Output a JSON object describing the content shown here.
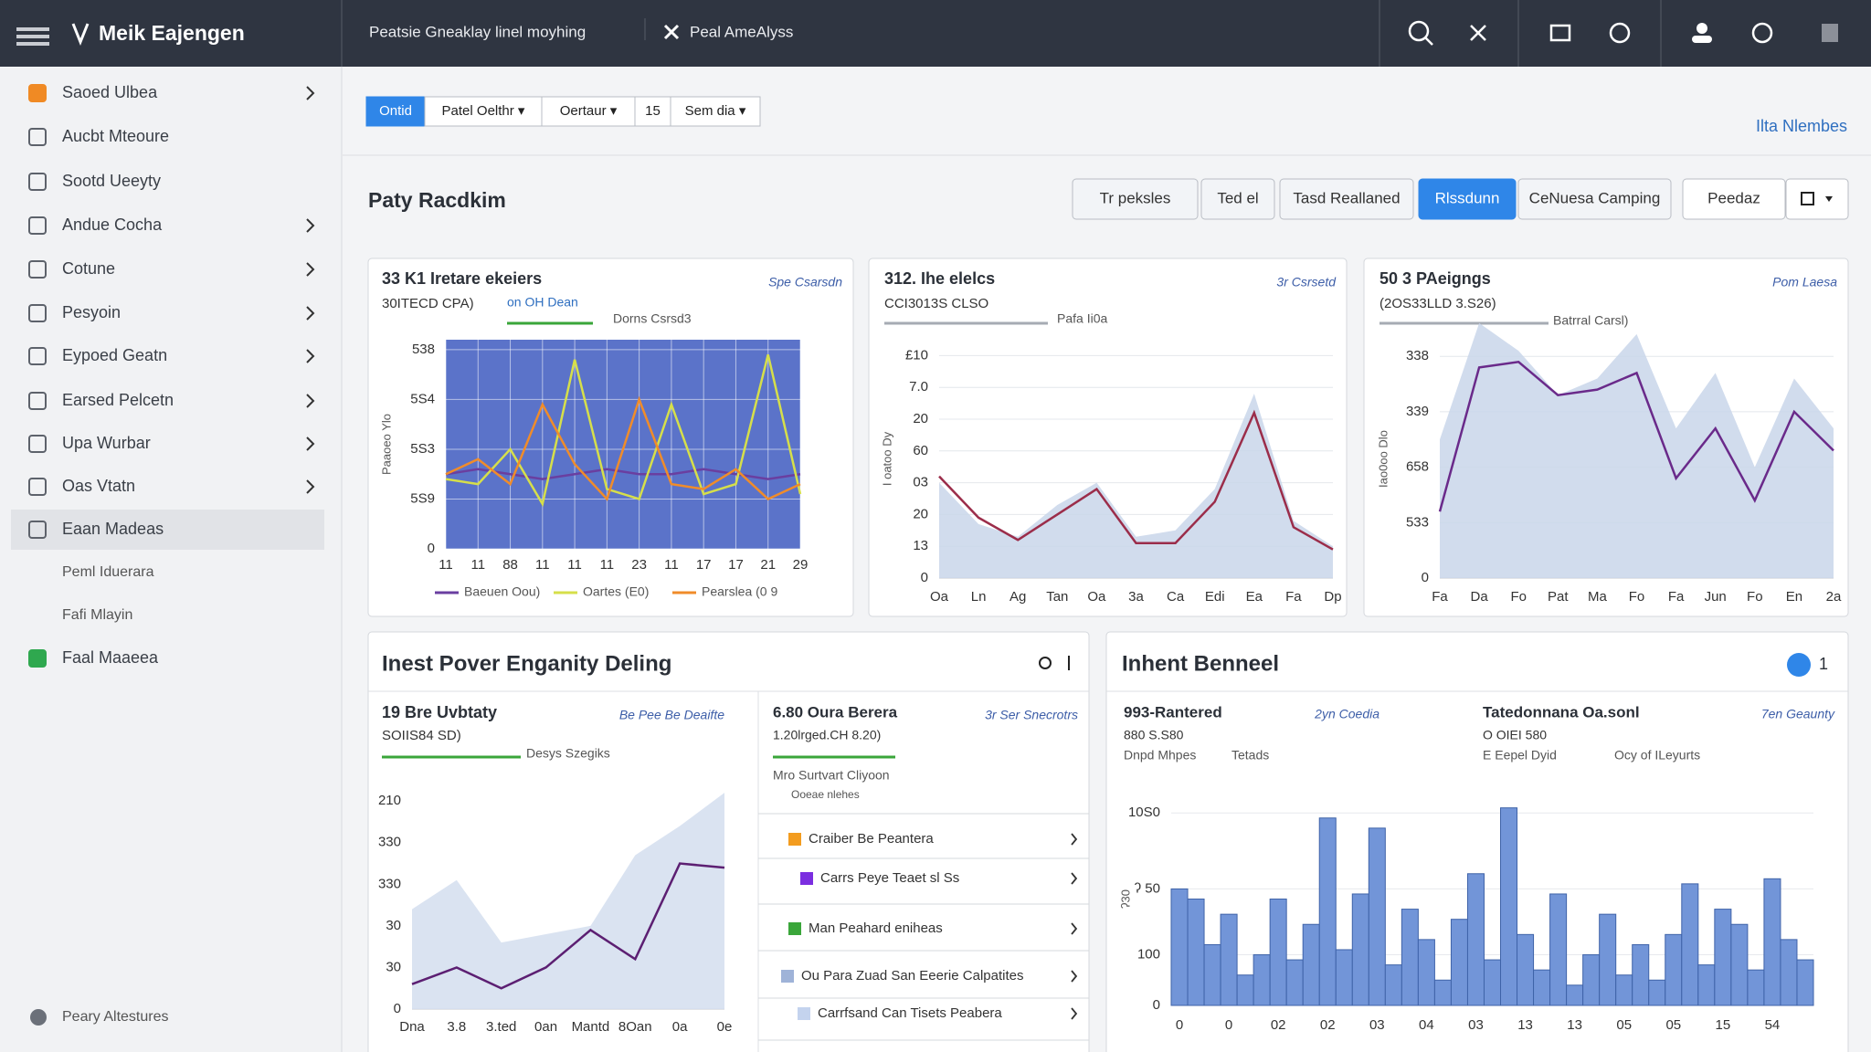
{
  "header": {
    "brand": "Meik Eajengen",
    "tabs": [
      "Peatsie Gneaklay linel moyhing",
      "Peal AmeAlyss"
    ]
  },
  "sidebar": {
    "items": [
      {
        "label": "Saoed Ulbea",
        "chevron": true
      },
      {
        "label": "Aucbt Mteoure"
      },
      {
        "label": "Sootd Ueeyty"
      },
      {
        "label": "Andue Cocha",
        "chevron": true
      },
      {
        "label": "Cotune",
        "chevron": true
      },
      {
        "label": "Pesyoin",
        "chevron": true
      },
      {
        "label": "Eypoed Geatn",
        "chevron": true
      },
      {
        "label": "Earsed Pelcetn",
        "chevron": true
      },
      {
        "label": "Upa Wurbar",
        "chevron": true
      },
      {
        "label": "Oas Vtatn",
        "chevron": true
      },
      {
        "label": "Eaan Madeas",
        "active": true
      },
      {
        "label": "Peml Iduerara",
        "indent": true
      },
      {
        "label": "Fafi Mlayin",
        "indent": true
      },
      {
        "label": "Faal Maaeea"
      }
    ],
    "footer": "Peary Altestures"
  },
  "toolbar": {
    "buttons": [
      "Ontid",
      "Patel Oelthr ▾",
      "Oertaur ▾",
      "15",
      "Sem dia ▾"
    ],
    "active": 0,
    "link": "Ilta Nlembes"
  },
  "section": {
    "title": "Paty Racdkim",
    "tabs": [
      "Tr peksles",
      "Ted el",
      "Tasd Reallaned",
      "Rlssdunn",
      "CeNuesa Camping",
      "Peedaz"
    ],
    "active": 3
  },
  "charts": [
    {
      "type": "line",
      "title": "33 K1 Iretare ekeiers",
      "subtitle": "30ITECD CPA)",
      "tag": "on OH Dean",
      "note": "Dorns Csrsd3",
      "link": "Spe Csarsdn",
      "ylabel": "Paaoeo Ylo",
      "plot_bg": "#5b73c9",
      "grid": true,
      "vgrid": true,
      "grid_color": "#ffffff",
      "categories": [
        "11",
        "11",
        "88",
        "11",
        "11",
        "11",
        "23",
        "11",
        "17",
        "17",
        "21",
        "29"
      ],
      "ylim": [
        0,
        4.2
      ],
      "yticks": [
        0,
        {
          "value": 1,
          "label": "5S9"
        },
        {
          "value": 2,
          "label": "5S3"
        },
        {
          "value": 3,
          "label": "5S4"
        },
        {
          "value": 4,
          "label": "538"
        }
      ],
      "legend": true,
      "series": [
        {
          "name": "Baeuen Oou)",
          "color": "#6a3fa0",
          "values": [
            1.5,
            1.6,
            1.5,
            1.4,
            1.5,
            1.6,
            1.5,
            1.5,
            1.6,
            1.5,
            1.4,
            1.5
          ]
        },
        {
          "name": "Oartes (E0)",
          "color": "#d6df4a",
          "values": [
            1.4,
            1.3,
            2.0,
            0.9,
            3.8,
            1.2,
            1.0,
            2.9,
            1.1,
            1.3,
            3.9,
            1.1
          ]
        },
        {
          "name": "Pearslea (0 9",
          "color": "#f08c2a",
          "values": [
            1.5,
            1.8,
            1.3,
            2.9,
            1.7,
            1.0,
            3.0,
            1.3,
            1.2,
            1.6,
            1.0,
            1.3
          ]
        }
      ]
    },
    {
      "type": "area",
      "title": "312. Ihe elelcs",
      "subtitle": "CCI3013S CLSO",
      "note": "Pafa Ii0a",
      "link": "3r Csrsetd",
      "ylabel": "I oatoo Dy",
      "grid": true,
      "grid_color": "#e4e7ec",
      "categories": [
        "Oa",
        "Ln",
        "Ag",
        "Tan",
        "Oa",
        "3a",
        "Ca",
        "Edi",
        "Ea",
        "Fa",
        "Dp"
      ],
      "ylim": [
        0,
        7.5
      ],
      "yticks": [
        0,
        {
          "value": 1,
          "label": "13"
        },
        {
          "value": 2,
          "label": "20"
        },
        {
          "value": 3,
          "label": "03"
        },
        {
          "value": 4,
          "label": "60"
        },
        {
          "value": 5,
          "label": "20"
        },
        {
          "value": 6,
          "label": "7.0"
        },
        {
          "value": 7,
          "label": "£10"
        }
      ],
      "series": [
        {
          "color": "#c9d6ea",
          "area": true,
          "values": [
            3.0,
            1.7,
            1.3,
            2.3,
            3.0,
            1.3,
            1.5,
            2.8,
            5.8,
            1.8,
            1.0
          ]
        },
        {
          "color": "#9b2d4a",
          "values": [
            3.2,
            1.9,
            1.2,
            2.0,
            2.8,
            1.1,
            1.1,
            2.4,
            5.2,
            1.6,
            0.9
          ]
        }
      ]
    },
    {
      "type": "area",
      "title": "50 3 PAeigngs",
      "subtitle": "(2OS33LLD 3.S26)",
      "note": "Batrral Carsl)",
      "link": "Pom Laesa",
      "ylabel": "Iao0oo Dlo",
      "grid": true,
      "grid_color": "#e4e7ec",
      "categories": [
        "Fa",
        "Da",
        "Fo",
        "Pat",
        "Ma",
        "Fo",
        "Fa",
        "Jun",
        "Fo",
        "En",
        "2a"
      ],
      "ylim": [
        0,
        4.3
      ],
      "yticks": [
        0,
        {
          "value": 1,
          "label": "533"
        },
        {
          "value": 2,
          "label": "658"
        },
        {
          "value": 3,
          "label": "339"
        },
        {
          "value": 4,
          "label": "338"
        }
      ],
      "series": [
        {
          "color": "#c9d6ea",
          "area": true,
          "values": [
            2.5,
            4.6,
            4.1,
            3.3,
            3.6,
            4.4,
            2.7,
            3.7,
            2.0,
            3.6,
            2.7
          ]
        },
        {
          "color": "#6a2a8a",
          "values": [
            1.2,
            3.8,
            3.9,
            3.3,
            3.4,
            3.7,
            1.8,
            2.7,
            1.4,
            3.0,
            2.3
          ]
        }
      ]
    },
    {
      "type": "area",
      "title": "19 Bre Uvbtaty",
      "subtitle": "SOIIS84 SD)",
      "note": "Desys Szegiks",
      "link": "Be Pee Be Deaifte",
      "categories": [
        "Dna",
        "3.8",
        "3.ted",
        "0an",
        "Mantd",
        "8Oan",
        "0a",
        "0e"
      ],
      "ylim": [
        0,
        5.4
      ],
      "yticks": [
        0,
        {
          "value": 1,
          "label": "30"
        },
        {
          "value": 2,
          "label": "30"
        },
        {
          "value": 3,
          "label": "330"
        },
        {
          "value": 4,
          "label": "330"
        },
        {
          "value": 5,
          "label": "210"
        }
      ],
      "series": [
        {
          "color": "#d3deef",
          "area": true,
          "values": [
            2.4,
            3.1,
            1.6,
            1.8,
            2.0,
            3.7,
            4.4,
            5.2
          ]
        },
        {
          "color": "#5c1f72",
          "values": [
            0.6,
            1.0,
            0.5,
            1.0,
            1.9,
            1.2,
            3.5,
            3.4
          ]
        }
      ]
    },
    {
      "type": "bar",
      "ylabel": "ʔ30",
      "color": "#7295d8",
      "grid": true,
      "grid_color": "#e7e9ed",
      "categories": [
        "0",
        null,
        null,
        "0",
        null,
        null,
        "02",
        null,
        null,
        "02",
        null,
        null,
        "03",
        null,
        null,
        "04",
        null,
        null,
        "03",
        null,
        null,
        "13",
        null,
        null,
        "13",
        null,
        null,
        "05",
        null,
        null,
        "05",
        null,
        null,
        "15",
        null,
        null,
        "54",
        null,
        null
      ],
      "ylim": [
        0,
        4.2
      ],
      "yticks": [
        0,
        {
          "value": 1,
          "label": "100"
        },
        {
          "value": 2.3,
          "label": "ʔ 50"
        },
        {
          "value": 3.8,
          "label": "10S0"
        }
      ],
      "values": [
        2.3,
        2.1,
        1.2,
        1.8,
        0.6,
        1.0,
        2.1,
        0.9,
        1.6,
        3.7,
        1.1,
        2.2,
        3.5,
        0.8,
        1.9,
        1.3,
        0.5,
        1.7,
        2.6,
        0.9,
        3.9,
        1.4,
        0.7,
        2.2,
        0.4,
        1.0,
        1.8,
        0.6,
        1.2,
        0.5,
        1.4,
        2.4,
        0.8,
        1.9,
        1.6,
        0.7,
        2.5,
        1.3,
        0.9
      ]
    }
  ],
  "panels": [
    {
      "title": "Inest Pover Enganity Deling"
    },
    {
      "title": "Inhent Benneel",
      "badge": "1"
    }
  ],
  "list": {
    "title": "6.80 Oura Berera",
    "link": "3r Ser Snecrotrs",
    "subtitle": "1.20lrged.CH 8.20)",
    "text": "Mro Surtvart Cliyoon",
    "small": "Ooeae nlehes",
    "rows": [
      {
        "label": "Craiber Be Peantera",
        "color": "#f39c1f"
      },
      {
        "label": "Carrs Peye Teaet sl Ss",
        "color": "#7b2ee0"
      },
      {
        "label": "Man Peahard eniheas",
        "color": "#3aa63a"
      },
      {
        "label": "Ou Para Zuad San Eeerie Calpatites",
        "color": "#9fb3d8"
      },
      {
        "label": "Carrfsand Can Tisets Peabera",
        "color": "#c4d3ee"
      }
    ]
  },
  "stats": {
    "a": {
      "title": "993-Rantered",
      "value": "880 S.S80",
      "meta": "Dnpd Mhpes",
      "meta2": "Tetads",
      "link": "2yn Coedia"
    },
    "b": {
      "title": "Tatedonnana Oa.sonl",
      "value": "O OIEI 580",
      "meta": "E Eepel Dyid",
      "meta2": "Ocy of ILeyurts",
      "link": "7en Geaunty"
    }
  }
}
